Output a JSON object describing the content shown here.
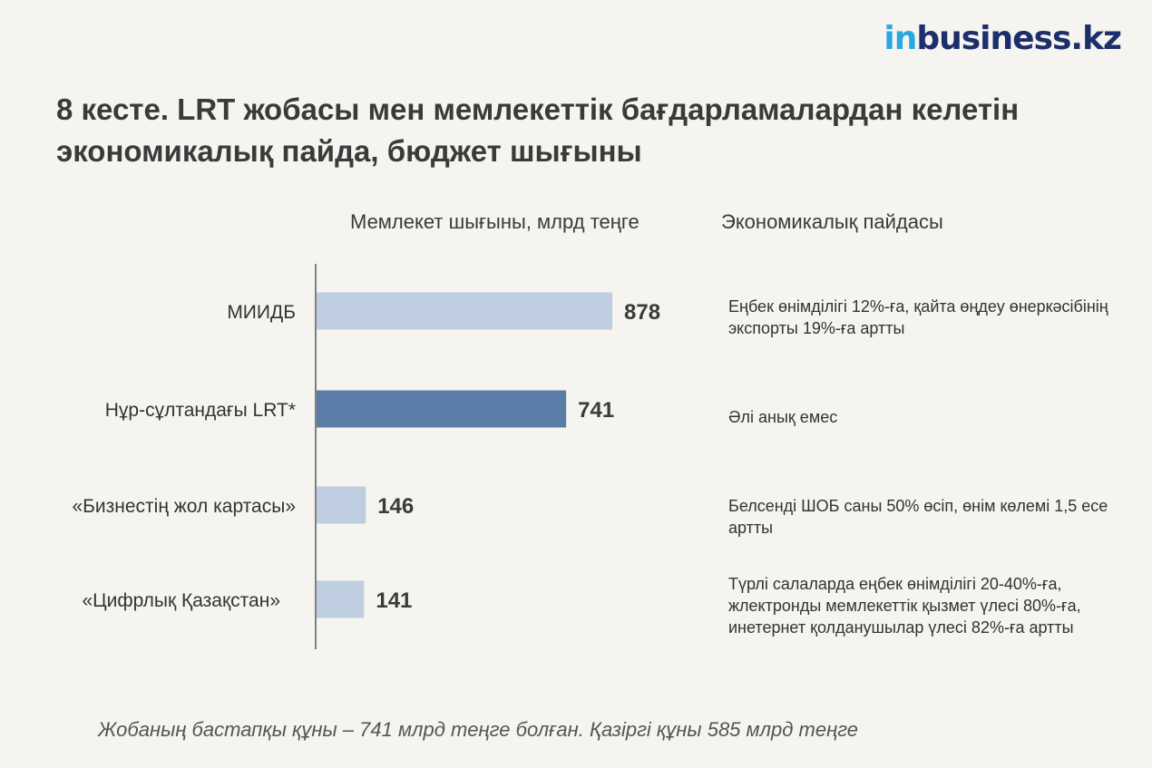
{
  "logo": {
    "part1": "in",
    "part2": "business.kz"
  },
  "title": "8 кесте. LRT жобасы мен мемлекеттік бағдарламалардан келетін экономикалық пайда, бюджет шығыны",
  "columns": {
    "cost": "Мемлекет шығыны, млрд теңге",
    "benefit": "Экономикалық пайдасы"
  },
  "benefits": [
    "Еңбек өнімділігі 12%-ға, қайта өңдеу өнеркәсібінің экспорты 19%-ға артты",
    "Әлі анық емес",
    "Белсенді ШОБ саны 50% өсіп, өнім көлемі 1,5 есе артты",
    "Түрлі салаларда еңбек өнімділігі 20-40%-ға, жлектронды мемлекеттік қызмет үлесі 80%-ға, инетернет қолданушылар үлесі 82%-ға артты"
  ],
  "footnote": "Жобаның бастапқы құны – 741 млрд теңге болған. Қазіргі құны 585 млрд теңге",
  "colors": {
    "bar": "#bfcde1",
    "highlight": "#5b7ea8",
    "logo_light": "#2aa8e0",
    "logo_dark": "#1c2e6c"
  },
  "chart_data": {
    "type": "bar",
    "orientation": "horizontal",
    "categories": [
      "МИИДБ",
      "Нұр-сұлтандағы LRT*",
      "«Бизнестің жол картасы»",
      "«Цифрлық Қазақстан»"
    ],
    "values": [
      878,
      741,
      146,
      141
    ],
    "value_labels": [
      "878",
      "741",
      "146",
      "141"
    ],
    "highlight_index": 1,
    "xlim": [
      0,
      878
    ],
    "xlabel": "Мемлекет шығыны, млрд теңге",
    "grid": false
  }
}
